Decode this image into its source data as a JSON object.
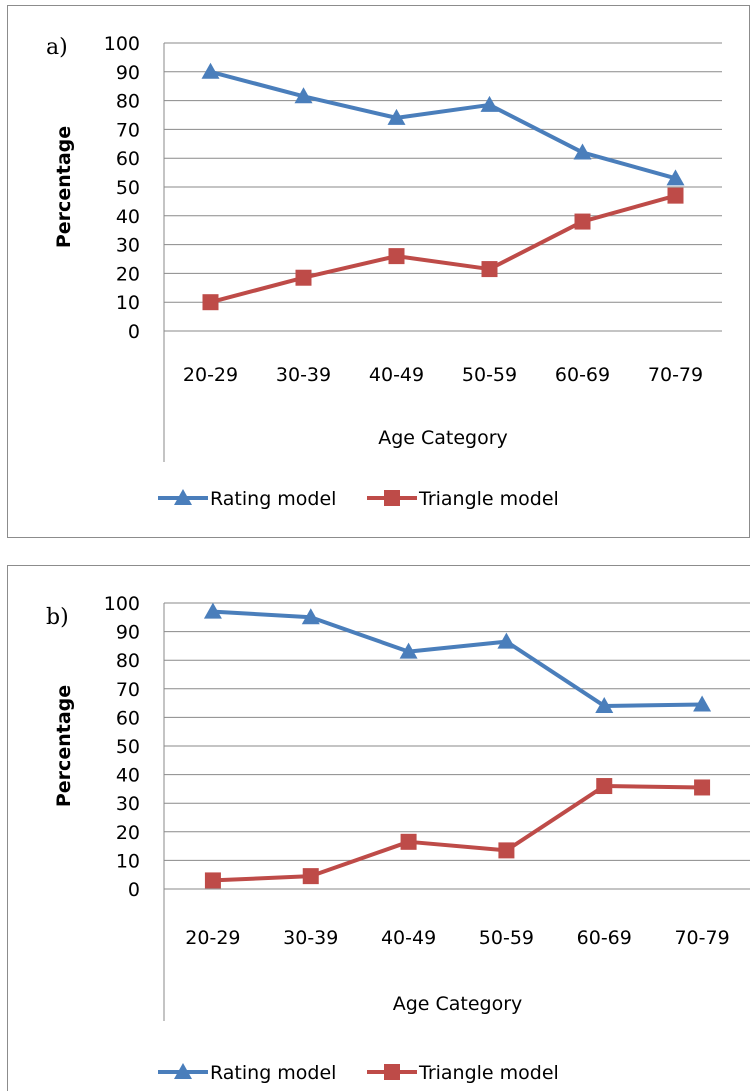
{
  "chart_data": [
    {
      "type": "line",
      "panel_label": "a)",
      "categories": [
        "20-29",
        "30-39",
        "40-49",
        "50-59",
        "60-69",
        "70-79"
      ],
      "series": [
        {
          "name": "Rating model",
          "values": [
            90,
            81.5,
            74,
            78.5,
            62,
            53
          ],
          "color": "#4a7ebb",
          "marker": "triangle"
        },
        {
          "name": "Triangle model",
          "values": [
            10,
            18.5,
            26,
            21.5,
            38,
            47
          ],
          "color": "#be4b48",
          "marker": "square"
        }
      ],
      "yticks": [
        "0",
        "10",
        "20",
        "30",
        "40",
        "50",
        "60",
        "70",
        "80",
        "90",
        "100"
      ],
      "xlabel": "Age Category",
      "ylabel": "Percentage",
      "ylim": [
        0,
        100
      ],
      "grid": true,
      "legend_position": "bottom"
    },
    {
      "type": "line",
      "panel_label": "b)",
      "categories": [
        "20-29",
        "30-39",
        "40-49",
        "50-59",
        "60-69",
        "70-79"
      ],
      "series": [
        {
          "name": "Rating model",
          "values": [
            97,
            95,
            83,
            86.5,
            64,
            64.5
          ],
          "color": "#4a7ebb",
          "marker": "triangle"
        },
        {
          "name": "Triangle model",
          "values": [
            3,
            4.5,
            16.5,
            13.5,
            36,
            35.5
          ],
          "color": "#be4b48",
          "marker": "square"
        }
      ],
      "yticks": [
        "0",
        "10",
        "20",
        "30",
        "40",
        "50",
        "60",
        "70",
        "80",
        "90",
        "100"
      ],
      "xlabel": "Age Category",
      "ylabel": "Percentage",
      "ylim": [
        0,
        100
      ],
      "grid": true,
      "legend_position": "bottom"
    }
  ]
}
